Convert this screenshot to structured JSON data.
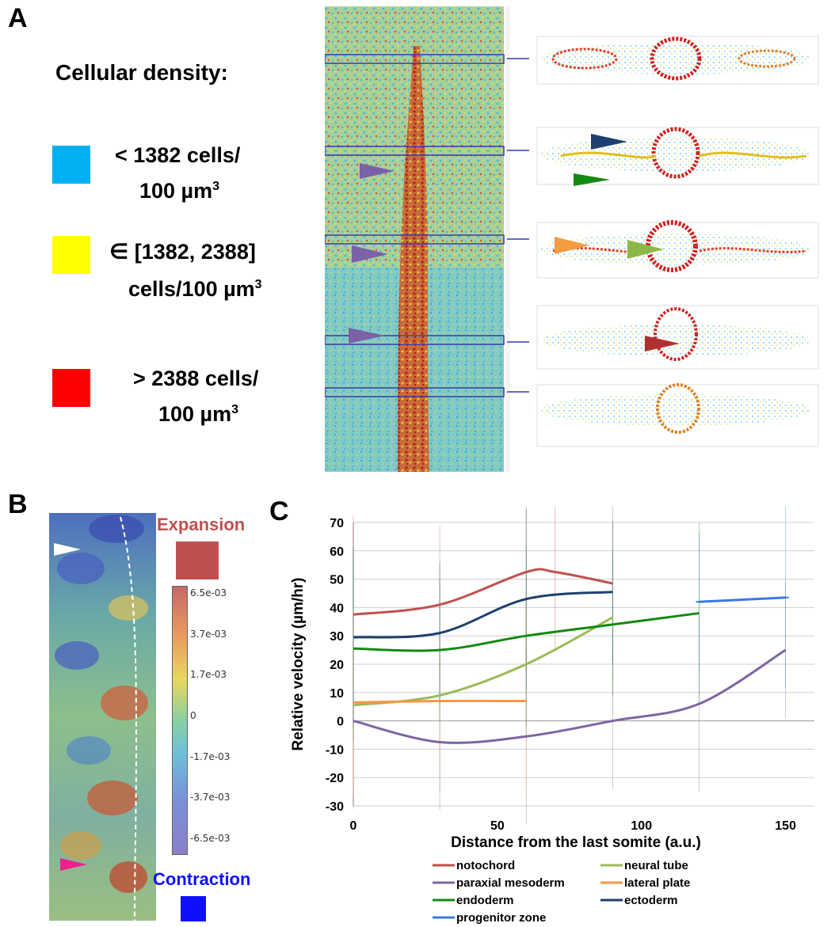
{
  "panels": {
    "a": "A",
    "b": "B",
    "c": "C"
  },
  "panel_a": {
    "density_title": "Cellular density:",
    "legend": [
      {
        "color": "#00b0f0",
        "line1": "< 1382 cells/",
        "line2": "100 µm",
        "sup": "3"
      },
      {
        "color": "#ffff00",
        "line1": "∈ [1382, 2388]",
        "line2": "cells/100 µm",
        "sup": "3"
      },
      {
        "color": "#ff0000",
        "line1": "> 2388 cells/",
        "line2": "100 µm",
        "sup": "3"
      }
    ],
    "arrow_colors": {
      "purple": "#7b61a8",
      "navy": "#1f3f6e",
      "green": "#138a13",
      "orange": "#f39c40",
      "lightgreen": "#8cb84a",
      "darkred": "#b03030"
    }
  },
  "panel_b": {
    "expansion_label": "Expansion",
    "contraction_label": "Contraction",
    "expansion_color": "#c0504d",
    "contraction_color": "#1010ff",
    "colorbar_ticks": [
      "6.5e-03",
      "3.7e-03",
      "1.7e-03",
      "0",
      "-1.7e-03",
      "-3.7e-03",
      "-6.5e-03"
    ]
  },
  "chart_data": {
    "type": "line",
    "xlabel": "Distance from the last  somite (a.u.)",
    "ylabel": "Relative velocity (µm/hr)",
    "xlim": [
      0,
      160
    ],
    "ylim": [
      -30,
      70
    ],
    "xticks": [
      "0",
      "50",
      "100",
      "150"
    ],
    "yticks": [
      "70",
      "60",
      "50",
      "40",
      "30",
      "20",
      "10",
      "0",
      "-10",
      "-20",
      "-30"
    ],
    "grid": true,
    "legend_position": "bottom",
    "series": [
      {
        "name": "notochord",
        "color": "#c0504d",
        "x": [
          0,
          30,
          60,
          70,
          90
        ],
        "y": [
          37.5,
          41,
          52.5,
          52.5,
          48.5
        ]
      },
      {
        "name": "neural tube",
        "color": "#9bbb59",
        "x": [
          0,
          30,
          60,
          90
        ],
        "y": [
          5.5,
          9,
          20,
          36.5
        ]
      },
      {
        "name": "paraxial mesoderm",
        "color": "#8064a2",
        "x": [
          0,
          30,
          60,
          90,
          120,
          150
        ],
        "y": [
          0,
          -7.5,
          -5.5,
          0,
          6,
          25
        ]
      },
      {
        "name": "lateral plate",
        "color": "#f79646",
        "x": [
          0,
          30,
          60
        ],
        "y": [
          6.5,
          7,
          7
        ]
      },
      {
        "name": "endoderm",
        "color": "#138a13",
        "x": [
          0,
          30,
          60,
          90,
          120
        ],
        "y": [
          25.5,
          25,
          30,
          34,
          38
        ]
      },
      {
        "name": "ectoderm",
        "color": "#1f3f6e",
        "x": [
          0,
          30,
          60,
          90
        ],
        "y": [
          29.5,
          31,
          43,
          45.5
        ]
      },
      {
        "name": "progenitor zone",
        "color": "#3b78e7",
        "x": [
          120,
          150
        ],
        "y": [
          42,
          43.5
        ]
      }
    ]
  }
}
